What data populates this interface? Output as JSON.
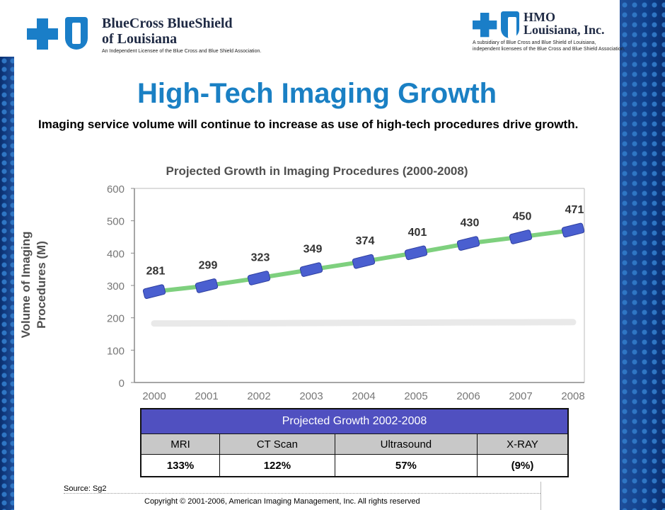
{
  "logo_left": {
    "name_line1": "BlueCross BlueShield",
    "name_line2": "of Louisiana",
    "tagline": "An Independent Licensee of the Blue Cross and Blue Shield Association."
  },
  "logo_right": {
    "name_line1": "HMO",
    "name_line2": "Louisiana, Inc.",
    "tagline_line1": "A subsidiary of Blue Cross and Blue Shield of Louisiana,",
    "tagline_line2": "independent licensees of the Blue Cross and Blue Shield Association."
  },
  "page_title": "High-Tech Imaging Growth",
  "subtitle": "Imaging service volume will continue to increase as use of high-tech procedures drive growth.",
  "chart_data": {
    "type": "line",
    "title": "Projected Growth in Imaging Procedures (2000-2008)",
    "ylabel_line1": "Volume of Imaging",
    "ylabel_line2": "Procedures (M)",
    "xlabel": "",
    "x": [
      "2000",
      "2001",
      "2002",
      "2003",
      "2004",
      "2005",
      "2006",
      "2007",
      "2008"
    ],
    "series": [
      {
        "values": [
          281,
          299,
          323,
          349,
          374,
          401,
          430,
          450,
          471
        ]
      }
    ],
    "data_labels": [
      "281",
      "299",
      "323",
      "349",
      "374",
      "401",
      "430",
      "450",
      "471"
    ],
    "ylim": [
      0,
      600
    ],
    "yticks": [
      "0",
      "100",
      "200",
      "300",
      "400",
      "500",
      "600"
    ],
    "grid": false,
    "colors": {
      "line": "#7ed07e",
      "marker": "#4a5fd0",
      "axis": "#888888",
      "labels": "#333333"
    }
  },
  "table": {
    "header": "Projected Growth 2002-2008",
    "columns": [
      "MRI",
      "CT Scan",
      "Ultrasound",
      "X-RAY"
    ],
    "values": [
      "133%",
      "122%",
      "57%",
      "(9%)"
    ]
  },
  "source": "Source: Sg2",
  "copyright": "Copyright © 2001-2006, American Imaging Management, Inc.  All rights reserved",
  "colors": {
    "title": "#1a80c4",
    "table_header": "#5050c0",
    "band": "#1f4f9a"
  }
}
